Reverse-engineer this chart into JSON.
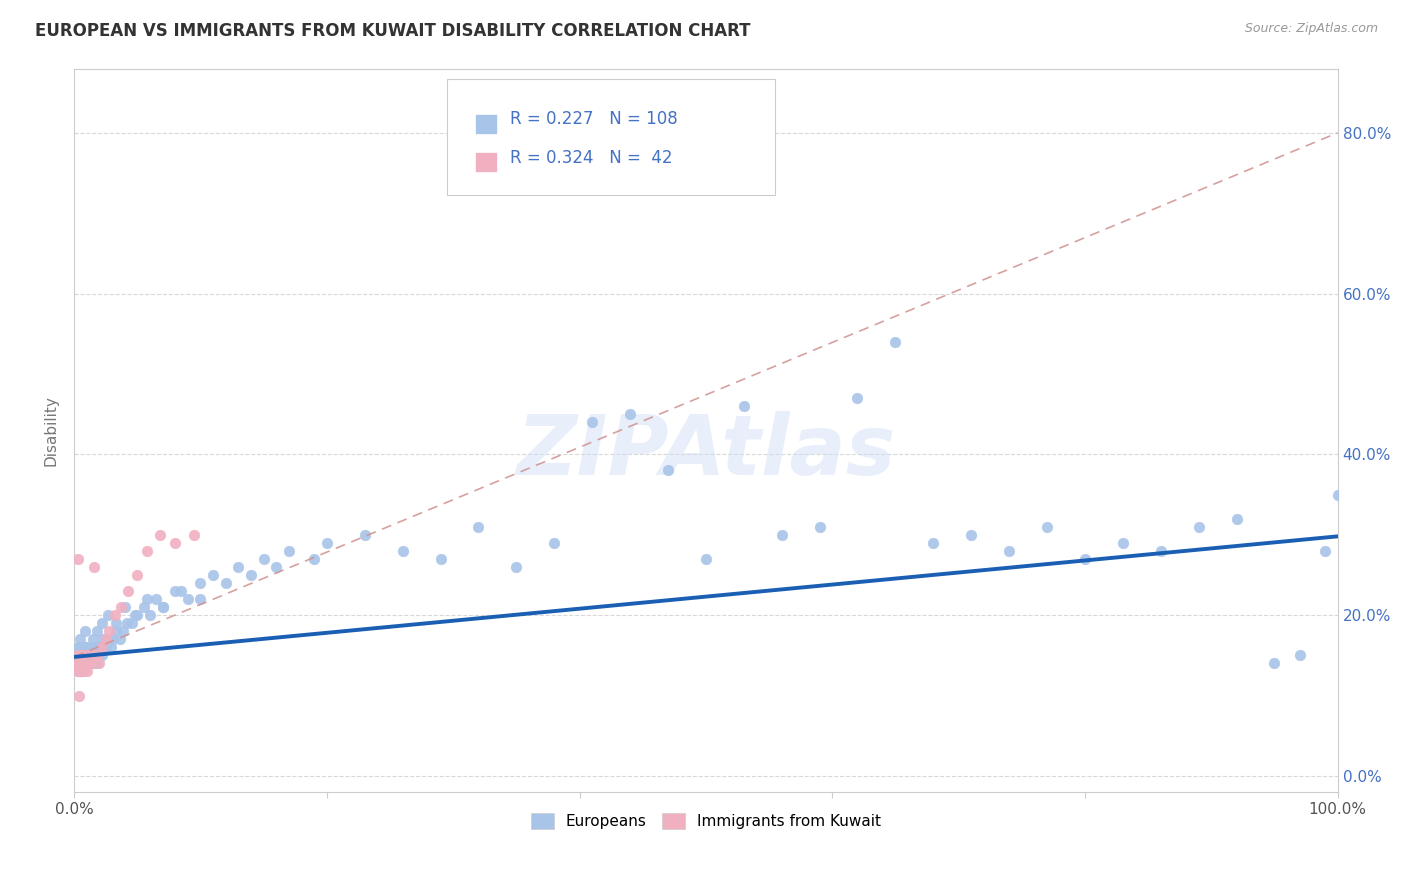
{
  "title": "EUROPEAN VS IMMIGRANTS FROM KUWAIT DISABILITY CORRELATION CHART",
  "source": "Source: ZipAtlas.com",
  "ylabel": "Disability",
  "xlim": [
    0,
    1.0
  ],
  "ylim": [
    -0.02,
    0.88
  ],
  "xtick_positions": [
    0.0,
    0.2,
    0.4,
    0.6,
    0.8,
    1.0
  ],
  "xtick_labels": [
    "0.0%",
    "",
    "",
    "",
    "",
    "100.0%"
  ],
  "ytick_positions": [
    0.0,
    0.2,
    0.4,
    0.6,
    0.8
  ],
  "ytick_labels_right": [
    "0.0%",
    "20.0%",
    "40.0%",
    "60.0%",
    "80.0%"
  ],
  "european_color": "#a8c4e8",
  "kuwait_color": "#f0b0c0",
  "european_line_color": "#1a5fb4",
  "kuwait_line_color": "#d09090",
  "eu_line_x": [
    0.0,
    1.0
  ],
  "eu_line_y": [
    0.148,
    0.298
  ],
  "kw_line_x": [
    0.0,
    1.0
  ],
  "kw_line_y": [
    0.148,
    0.8
  ],
  "legend_R1": "0.227",
  "legend_N1": "108",
  "legend_R2": "0.324",
  "legend_N2": "42",
  "watermark": "ZIPAtlas",
  "background_color": "#ffffff",
  "grid_color": "#d8d8d8",
  "title_color": "#333333",
  "label_color": "#4472c4",
  "axis_label_color": "#777777",
  "eu_x": [
    0.002,
    0.003,
    0.003,
    0.004,
    0.004,
    0.004,
    0.005,
    0.005,
    0.005,
    0.005,
    0.006,
    0.006,
    0.006,
    0.007,
    0.007,
    0.007,
    0.008,
    0.008,
    0.009,
    0.009,
    0.01,
    0.01,
    0.011,
    0.011,
    0.012,
    0.012,
    0.013,
    0.013,
    0.014,
    0.015,
    0.016,
    0.017,
    0.018,
    0.019,
    0.02,
    0.021,
    0.022,
    0.023,
    0.025,
    0.027,
    0.029,
    0.031,
    0.033,
    0.036,
    0.039,
    0.042,
    0.046,
    0.05,
    0.055,
    0.06,
    0.065,
    0.07,
    0.08,
    0.09,
    0.1,
    0.11,
    0.13,
    0.15,
    0.17,
    0.2,
    0.23,
    0.26,
    0.29,
    0.32,
    0.35,
    0.38,
    0.41,
    0.44,
    0.47,
    0.5,
    0.53,
    0.56,
    0.59,
    0.62,
    0.65,
    0.68,
    0.71,
    0.74,
    0.77,
    0.8,
    0.83,
    0.86,
    0.89,
    0.92,
    0.95,
    0.97,
    0.99,
    1.0,
    0.003,
    0.005,
    0.007,
    0.009,
    0.012,
    0.015,
    0.018,
    0.022,
    0.027,
    0.033,
    0.04,
    0.048,
    0.058,
    0.07,
    0.085,
    0.1,
    0.12,
    0.14,
    0.16,
    0.19
  ],
  "eu_y": [
    0.14,
    0.15,
    0.13,
    0.16,
    0.14,
    0.15,
    0.14,
    0.13,
    0.15,
    0.16,
    0.14,
    0.15,
    0.13,
    0.14,
    0.16,
    0.15,
    0.14,
    0.15,
    0.14,
    0.16,
    0.15,
    0.14,
    0.15,
    0.16,
    0.14,
    0.15,
    0.16,
    0.14,
    0.15,
    0.14,
    0.16,
    0.15,
    0.14,
    0.16,
    0.15,
    0.16,
    0.15,
    0.17,
    0.16,
    0.17,
    0.16,
    0.17,
    0.18,
    0.17,
    0.18,
    0.19,
    0.19,
    0.2,
    0.21,
    0.2,
    0.22,
    0.21,
    0.23,
    0.22,
    0.24,
    0.25,
    0.26,
    0.27,
    0.28,
    0.29,
    0.3,
    0.28,
    0.27,
    0.31,
    0.26,
    0.29,
    0.44,
    0.45,
    0.38,
    0.27,
    0.46,
    0.3,
    0.31,
    0.47,
    0.54,
    0.29,
    0.3,
    0.28,
    0.31,
    0.27,
    0.29,
    0.28,
    0.31,
    0.32,
    0.14,
    0.15,
    0.28,
    0.35,
    0.16,
    0.17,
    0.15,
    0.18,
    0.16,
    0.17,
    0.18,
    0.19,
    0.2,
    0.19,
    0.21,
    0.2,
    0.22,
    0.21,
    0.23,
    0.22,
    0.24,
    0.25,
    0.26,
    0.27
  ],
  "kw_x": [
    0.002,
    0.003,
    0.003,
    0.004,
    0.004,
    0.004,
    0.005,
    0.005,
    0.005,
    0.006,
    0.006,
    0.006,
    0.007,
    0.007,
    0.008,
    0.008,
    0.009,
    0.009,
    0.01,
    0.01,
    0.011,
    0.011,
    0.012,
    0.013,
    0.014,
    0.015,
    0.016,
    0.018,
    0.02,
    0.022,
    0.025,
    0.028,
    0.032,
    0.037,
    0.043,
    0.05,
    0.058,
    0.068,
    0.08,
    0.095,
    0.003,
    0.004
  ],
  "kw_y": [
    0.14,
    0.13,
    0.15,
    0.14,
    0.13,
    0.15,
    0.14,
    0.13,
    0.15,
    0.14,
    0.13,
    0.15,
    0.14,
    0.15,
    0.14,
    0.13,
    0.14,
    0.15,
    0.14,
    0.13,
    0.14,
    0.15,
    0.14,
    0.15,
    0.14,
    0.15,
    0.26,
    0.15,
    0.14,
    0.16,
    0.17,
    0.18,
    0.2,
    0.21,
    0.23,
    0.25,
    0.28,
    0.3,
    0.29,
    0.3,
    0.27,
    0.1
  ]
}
